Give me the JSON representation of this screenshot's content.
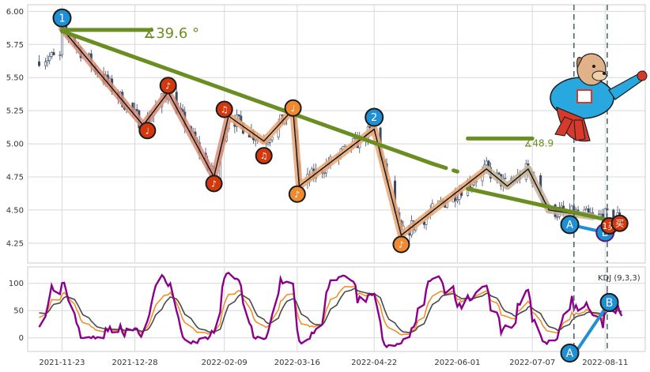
{
  "chart_data": {
    "type": "candlestick",
    "colors": {
      "candle": "#3b4a66",
      "trend_green": "#6b8e23",
      "zigzag_pink": "#d9907a",
      "zigzag_orange": "#e8a675",
      "kdj_k": "#f28e2b",
      "kdj_d": "#4a4a4a",
      "kdj_j": "#8b008b",
      "vline": "#4f6b73",
      "ab_blue": "#1f8fd6",
      "marker_red": "#d4380d",
      "marker_orange": "#f08a30"
    },
    "price_panel": {
      "ylim": [
        4.1,
        6.05
      ],
      "yticks": [
        "6.00",
        "5.75",
        "5.50",
        "5.25",
        "5.00",
        "4.75",
        "4.50",
        "4.25"
      ],
      "ytick_values": [
        6.0,
        5.75,
        5.5,
        5.25,
        5.0,
        4.75,
        4.5,
        4.25
      ],
      "trend_lines": [
        {
          "from": [
            "2021-11-23",
            5.85
          ],
          "to": [
            "2022-05-20",
            4.85
          ],
          "style": "solid"
        },
        {
          "from": [
            "2022-05-20",
            4.85
          ],
          "to": [
            "2022-06-01",
            4.79
          ],
          "style": "dashed"
        },
        {
          "from": [
            "2021-11-23",
            5.86
          ],
          "to": [
            "2022-01-05",
            5.86
          ],
          "style": "solid"
        },
        {
          "from": [
            "2022-06-06",
            4.66
          ],
          "to": [
            "2022-08-11",
            4.43
          ],
          "style": "solid"
        },
        {
          "from": [
            "2022-06-06",
            5.04
          ],
          "to": [
            "2022-07-07",
            5.04
          ],
          "style": "solid"
        }
      ],
      "angle_labels": [
        {
          "text": "∡39.6 °",
          "at": [
            "2022-01-01",
            5.8
          ]
        },
        {
          "text": "∡48.9",
          "at": [
            "2022-07-03",
            4.98
          ]
        }
      ],
      "zigzag": [
        [
          "2021-11-23",
          5.87
        ],
        [
          "2022-01-01",
          5.14
        ],
        [
          "2022-01-13",
          5.39
        ],
        [
          "2022-02-04",
          4.75
        ],
        [
          "2022-02-11",
          5.21
        ],
        [
          "2022-02-28",
          5.02
        ],
        [
          "2022-03-14",
          5.26
        ],
        [
          "2022-03-17",
          4.68
        ],
        [
          "2022-04-22",
          5.11
        ],
        [
          "2022-05-05",
          4.31
        ],
        [
          "2022-06-15",
          4.81
        ],
        [
          "2022-06-25",
          4.68
        ],
        [
          "2022-07-05",
          4.81
        ],
        [
          "2022-07-15",
          4.5
        ],
        [
          "2022-08-05",
          4.45
        ]
      ],
      "markers": [
        {
          "text": "1",
          "at": [
            "2021-11-23",
            5.95
          ],
          "kind": "blue"
        },
        {
          "text": "♩",
          "at": [
            "2022-01-03",
            5.1
          ],
          "kind": "red"
        },
        {
          "text": "♪",
          "at": [
            "2022-01-13",
            5.44
          ],
          "kind": "red"
        },
        {
          "text": "♪",
          "at": [
            "2022-02-04",
            4.7
          ],
          "kind": "red"
        },
        {
          "text": "♫",
          "at": [
            "2022-02-09",
            5.26
          ],
          "kind": "red"
        },
        {
          "text": "♫",
          "at": [
            "2022-02-28",
            4.91
          ],
          "kind": "red"
        },
        {
          "text": "♩",
          "at": [
            "2022-03-14",
            5.27
          ],
          "kind": "orange"
        },
        {
          "text": "♪",
          "at": [
            "2022-03-16",
            4.62
          ],
          "kind": "orange"
        },
        {
          "text": "2",
          "at": [
            "2022-04-22",
            5.2
          ],
          "kind": "blue"
        },
        {
          "text": "♪",
          "at": [
            "2022-05-05",
            4.24
          ],
          "kind": "orange"
        },
        {
          "text": "A",
          "at": [
            "2022-07-25",
            4.39
          ],
          "kind": "blue"
        },
        {
          "text": "B",
          "at": [
            "2022-08-11",
            4.33
          ],
          "kind": "blue_dark"
        },
        {
          "text": "1买",
          "at": [
            "2022-08-13",
            4.38
          ],
          "kind": "red"
        },
        {
          "text": "买",
          "at": [
            "2022-08-18",
            4.4
          ],
          "kind": "red"
        }
      ],
      "candles": []
    },
    "kdj_panel": {
      "label": "KDJ (9,3,3)",
      "ylim": [
        -25,
        130
      ],
      "yticks": [
        "100",
        "50",
        "0"
      ],
      "ytick_values": [
        100,
        50,
        0
      ],
      "markers": [
        {
          "text": "A",
          "at": [
            "2022-07-25",
            -25
          ]
        },
        {
          "text": "B",
          "at": [
            "2022-08-13",
            65
          ]
        }
      ],
      "series": [
        {
          "name": "K",
          "values": []
        },
        {
          "name": "D",
          "values": []
        },
        {
          "name": "J",
          "values": []
        }
      ]
    },
    "x_axis": {
      "range": [
        "2021-11-08",
        "2022-08-28"
      ],
      "ticks": [
        "2021-11-23",
        "2021-12-28",
        "2022-02-09",
        "2022-03-16",
        "2022-04-22",
        "2022-06-01",
        "2022-07-07",
        "2022-08-11"
      ],
      "vlines": [
        "2022-07-27",
        "2022-08-12"
      ]
    }
  }
}
